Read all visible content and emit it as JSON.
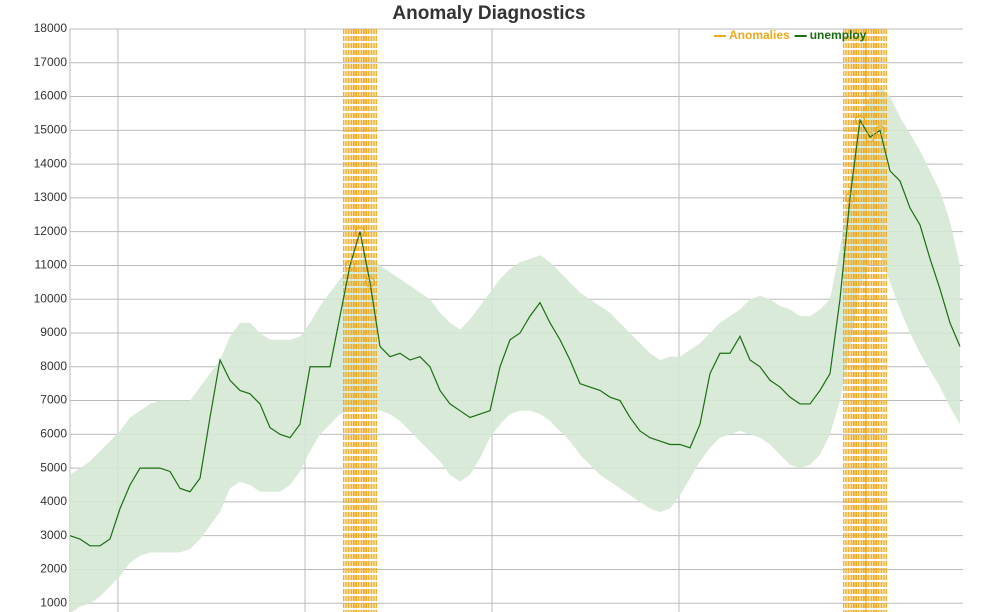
{
  "chart_data": {
    "type": "anomaly-line",
    "title": "Anomaly Diagnostics",
    "ylim": [
      0,
      18000
    ],
    "yticks": [
      1000,
      2000,
      3000,
      4000,
      5000,
      6000,
      7000,
      8000,
      9000,
      10000,
      11000,
      12000,
      13000,
      14000,
      15000,
      16000,
      17000,
      18000
    ],
    "grid": true,
    "legend": "top-right",
    "series": [
      {
        "name": "unemploy",
        "color": "#1a6e12",
        "values": [
          3000,
          2900,
          2700,
          2700,
          2900,
          3800,
          4500,
          5000,
          5000,
          5000,
          4900,
          4400,
          4300,
          4700,
          6500,
          8200,
          7600,
          7300,
          7200,
          6900,
          6200,
          6000,
          5900,
          6300,
          8000,
          8000,
          8000,
          9500,
          11000,
          12000,
          10500,
          8600,
          8300,
          8400,
          8200,
          8300,
          8000,
          7300,
          6900,
          6700,
          6500,
          6600,
          6700,
          8000,
          8800,
          9000,
          9500,
          9900,
          9300,
          8800,
          8200,
          7500,
          7400,
          7300,
          7100,
          7000,
          6500,
          6100,
          5900,
          5800,
          5700,
          5700,
          5600,
          6300,
          7800,
          8400,
          8400,
          8900,
          8200,
          8000,
          7600,
          7400,
          7100,
          6900,
          6900,
          7300,
          7800,
          10000,
          13000,
          15300,
          14800,
          15000,
          13800,
          13500,
          12700,
          12200,
          11200,
          10300,
          9300,
          8600
        ]
      },
      {
        "name": "Anomalies",
        "color": "#f0a81c",
        "values": [
          null,
          null,
          null,
          null,
          null,
          null,
          null,
          null,
          null,
          null,
          null,
          null,
          null,
          null,
          null,
          null,
          null,
          null,
          null,
          null,
          null,
          null,
          null,
          null,
          null,
          null,
          null,
          null,
          11000,
          12000,
          10500,
          null,
          null,
          null,
          null,
          null,
          null,
          null,
          null,
          null,
          null,
          null,
          null,
          null,
          null,
          null,
          null,
          null,
          null,
          null,
          null,
          null,
          null,
          null,
          null,
          null,
          null,
          null,
          null,
          null,
          null,
          null,
          null,
          null,
          null,
          null,
          null,
          null,
          null,
          null,
          null,
          null,
          null,
          null,
          null,
          null,
          null,
          null,
          13000,
          15300,
          14800,
          15000,
          null,
          null,
          null,
          null,
          null,
          null,
          null,
          null
        ]
      }
    ],
    "band": {
      "color": "#d5e8d4",
      "upper": [
        4800,
        5000,
        5200,
        5500,
        5800,
        6100,
        6500,
        6700,
        6900,
        7000,
        7000,
        7000,
        7000,
        7400,
        7800,
        8200,
        8900,
        9300,
        9300,
        9000,
        8800,
        8800,
        8800,
        8900,
        9300,
        9800,
        10200,
        10600,
        11000,
        11200,
        11200,
        11000,
        10800,
        10600,
        10400,
        10200,
        10000,
        9600,
        9300,
        9100,
        9400,
        9800,
        10200,
        10600,
        10900,
        11100,
        11200,
        11300,
        11100,
        10800,
        10500,
        10200,
        10000,
        9800,
        9600,
        9300,
        9000,
        8700,
        8400,
        8200,
        8300,
        8300,
        8500,
        8700,
        9000,
        9300,
        9500,
        9700,
        10000,
        10100,
        10000,
        9800,
        9700,
        9500,
        9500,
        9700,
        10000,
        11500,
        13500,
        15500,
        16000,
        16300,
        16000,
        15400,
        14900,
        14400,
        13800,
        13200,
        12300,
        11000
      ],
      "lower": [
        700,
        900,
        1000,
        1200,
        1500,
        1800,
        2200,
        2400,
        2500,
        2500,
        2500,
        2500,
        2600,
        2900,
        3300,
        3700,
        4400,
        4600,
        4500,
        4300,
        4300,
        4300,
        4500,
        4900,
        5500,
        6000,
        6300,
        6600,
        6700,
        6800,
        6800,
        6700,
        6600,
        6400,
        6100,
        5800,
        5500,
        5200,
        4800,
        4600,
        4800,
        5300,
        5900,
        6300,
        6600,
        6700,
        6700,
        6600,
        6400,
        6100,
        5800,
        5400,
        5100,
        4800,
        4600,
        4400,
        4200,
        4000,
        3800,
        3700,
        3800,
        4200,
        4700,
        5200,
        5600,
        5900,
        6000,
        6100,
        6000,
        5900,
        5700,
        5400,
        5100,
        5000,
        5100,
        5400,
        6000,
        7000,
        8600,
        10300,
        11300,
        11300,
        10500,
        9700,
        9000,
        8400,
        7900,
        7400,
        6800,
        6300
      ]
    }
  }
}
